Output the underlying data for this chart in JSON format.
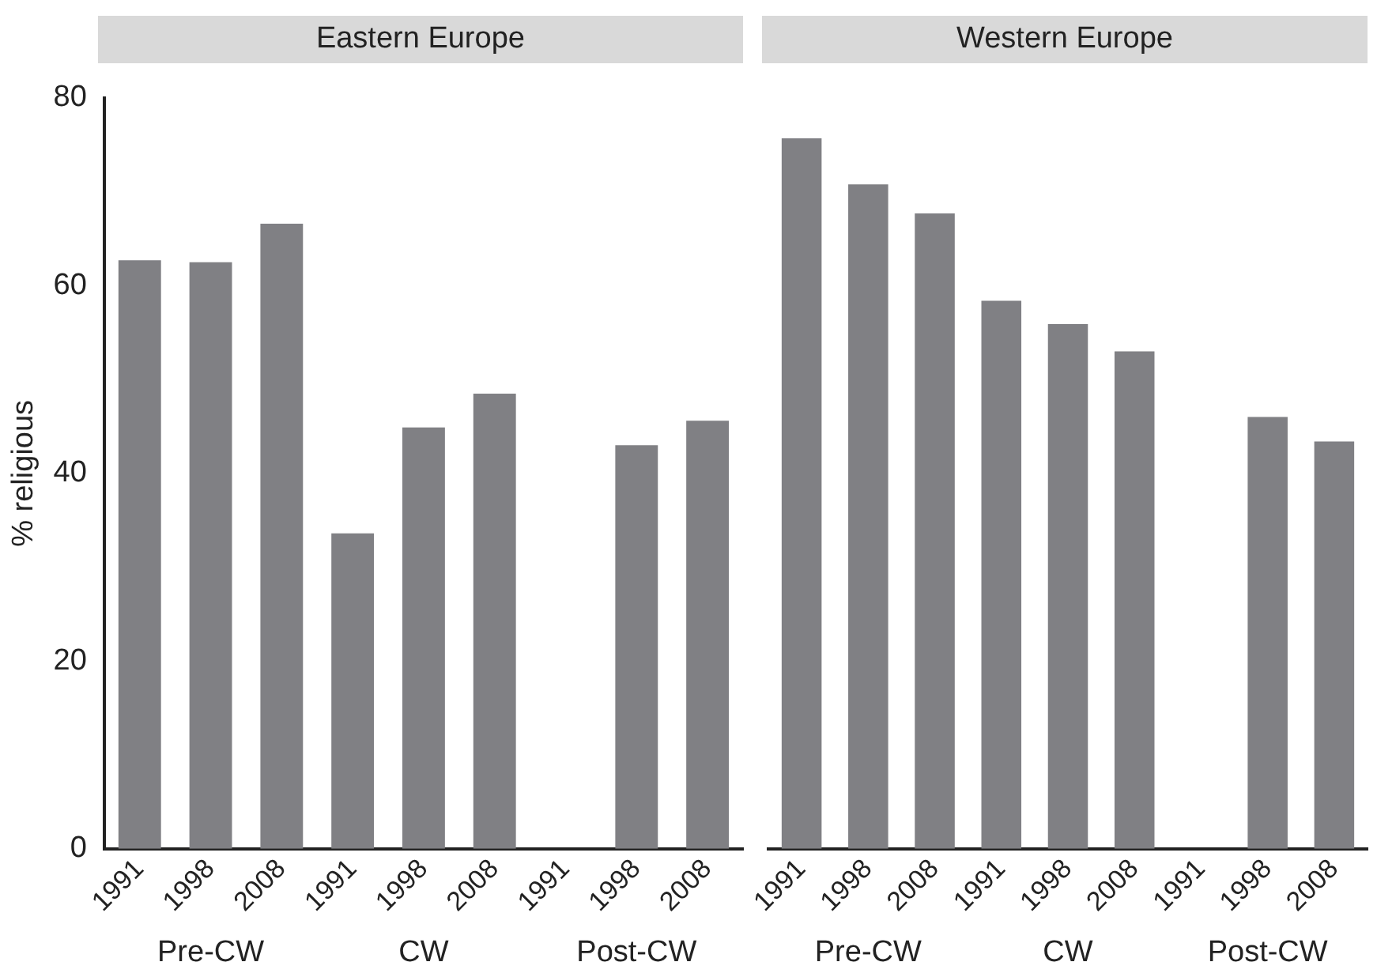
{
  "chart_data": [
    {
      "type": "bar",
      "title": "Eastern Europe",
      "ylabel": "% religious",
      "categories": [
        "1991",
        "1998",
        "2008",
        "1991",
        "1998",
        "2008",
        "1991",
        "1998",
        "2008"
      ],
      "values": [
        62.7,
        62.5,
        66.6,
        33.6,
        44.9,
        48.5,
        null,
        43.0,
        45.6
      ],
      "color": "#808084",
      "ylim": [
        0,
        80
      ],
      "yticks": [
        0,
        20,
        40,
        60,
        80
      ],
      "grid": false,
      "annotations": [
        "Pre-CW",
        "CW",
        "Post-CW"
      ]
    },
    {
      "type": "bar",
      "title": "Western Europe",
      "categories": [
        "1991",
        "1998",
        "2008",
        "1991",
        "1998",
        "2008",
        "1991",
        "1998",
        "2008"
      ],
      "values": [
        75.7,
        70.8,
        67.7,
        58.4,
        55.9,
        53.0,
        null,
        46.0,
        43.4
      ],
      "color": "#808084",
      "ylim": [
        0,
        80
      ],
      "yticks": [
        0,
        20,
        40,
        60,
        80
      ],
      "grid": false,
      "tick_labels": "x",
      "annotations": [
        "Pre-CW",
        "CW",
        "Post-CW"
      ]
    }
  ]
}
